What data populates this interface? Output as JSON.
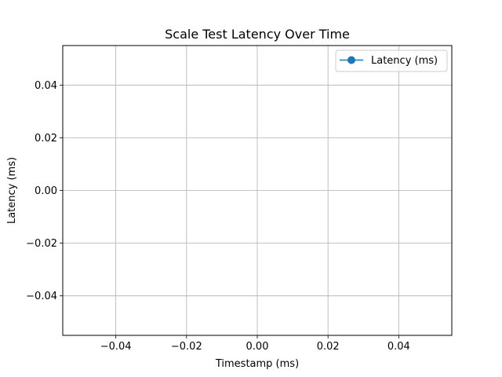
{
  "chart_data": {
    "type": "line",
    "title": "Scale Test Latency Over Time",
    "xlabel": "Timestamp (ms)",
    "ylabel": "Latency (ms)",
    "xlim": [
      -0.055,
      0.055
    ],
    "ylim": [
      -0.055,
      0.055
    ],
    "xticks": [
      -0.04,
      -0.02,
      0.0,
      0.02,
      0.04
    ],
    "yticks": [
      -0.04,
      -0.02,
      0.0,
      0.02,
      0.04
    ],
    "xtick_labels": [
      "−0.04",
      "−0.02",
      "0.00",
      "0.02",
      "0.04"
    ],
    "ytick_labels": [
      "−0.04",
      "−0.02",
      "0.00",
      "0.02",
      "0.04"
    ],
    "grid": true,
    "legend_position": "top-right",
    "series": [
      {
        "name": "Latency (ms)",
        "color": "#1f77b4",
        "marker": "circle",
        "x": [],
        "y": []
      }
    ]
  }
}
